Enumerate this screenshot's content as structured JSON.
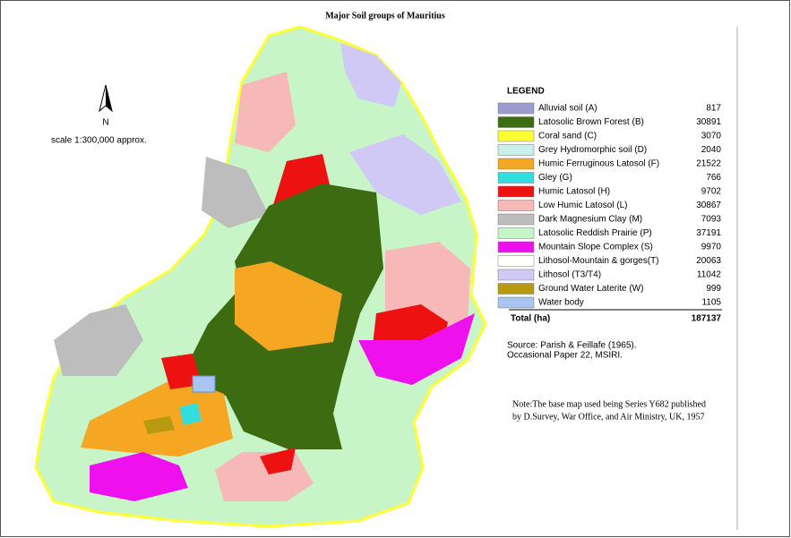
{
  "title": "Major Soil groups of Mauritius",
  "north": "N",
  "scale": "scale 1:300,000 approx.",
  "legend": {
    "title": "LEGEND",
    "items": [
      {
        "name": "Alluvial soil (A)",
        "value": 817,
        "color": "#9b9bd0"
      },
      {
        "name": "Latosolic Brown Forest (B)",
        "value": 30891,
        "color": "#3d6b12"
      },
      {
        "name": "Coral sand (C)",
        "value": 3070,
        "color": "#ffff33"
      },
      {
        "name": "Grey Hydromorphic soil (D)",
        "value": 2040,
        "color": "#c8f0e8"
      },
      {
        "name": "Humic Ferruginous Latosol (F)",
        "value": 21522,
        "color": "#f5a623"
      },
      {
        "name": "Gley (G)",
        "value": 766,
        "color": "#33dddd"
      },
      {
        "name": "Humic Latosol (H)",
        "value": 9702,
        "color": "#ee1111"
      },
      {
        "name": "Low Humic Latosol (L)",
        "value": 30867,
        "color": "#f7b8b8"
      },
      {
        "name": "Dark Magnesium Clay  (M)",
        "value": 7093,
        "color": "#bdbdbd"
      },
      {
        "name": "Latosolic Reddish Prairie (P)",
        "value": 37191,
        "color": "#c8f5c8"
      },
      {
        "name": "Mountain Slope Complex  (S)",
        "value": 9970,
        "color": "#ee11ee"
      },
      {
        "name": "Lithosol-Mountain & gorges(T)",
        "value": 20063,
        "color": "#ffffff"
      },
      {
        "name": "Lithosol (T3/T4)",
        "value": 11042,
        "color": "#d0c8f5"
      },
      {
        "name": "Ground Water Laterite (W)",
        "value": 999,
        "color": "#b89a10"
      },
      {
        "name": "Water body",
        "value": 1105,
        "color": "#a8c4f0"
      }
    ],
    "total": {
      "label": "Total (ha)",
      "value": 187137
    }
  },
  "source": [
    "Source: Parish & Feillafe (1965).",
    "Occasional Paper  22, MSIRI."
  ],
  "note": [
    "Note:The base map used being Series Y682 published",
    "by D.Survey, War Office, and Air Ministry, UK, 1957"
  ]
}
